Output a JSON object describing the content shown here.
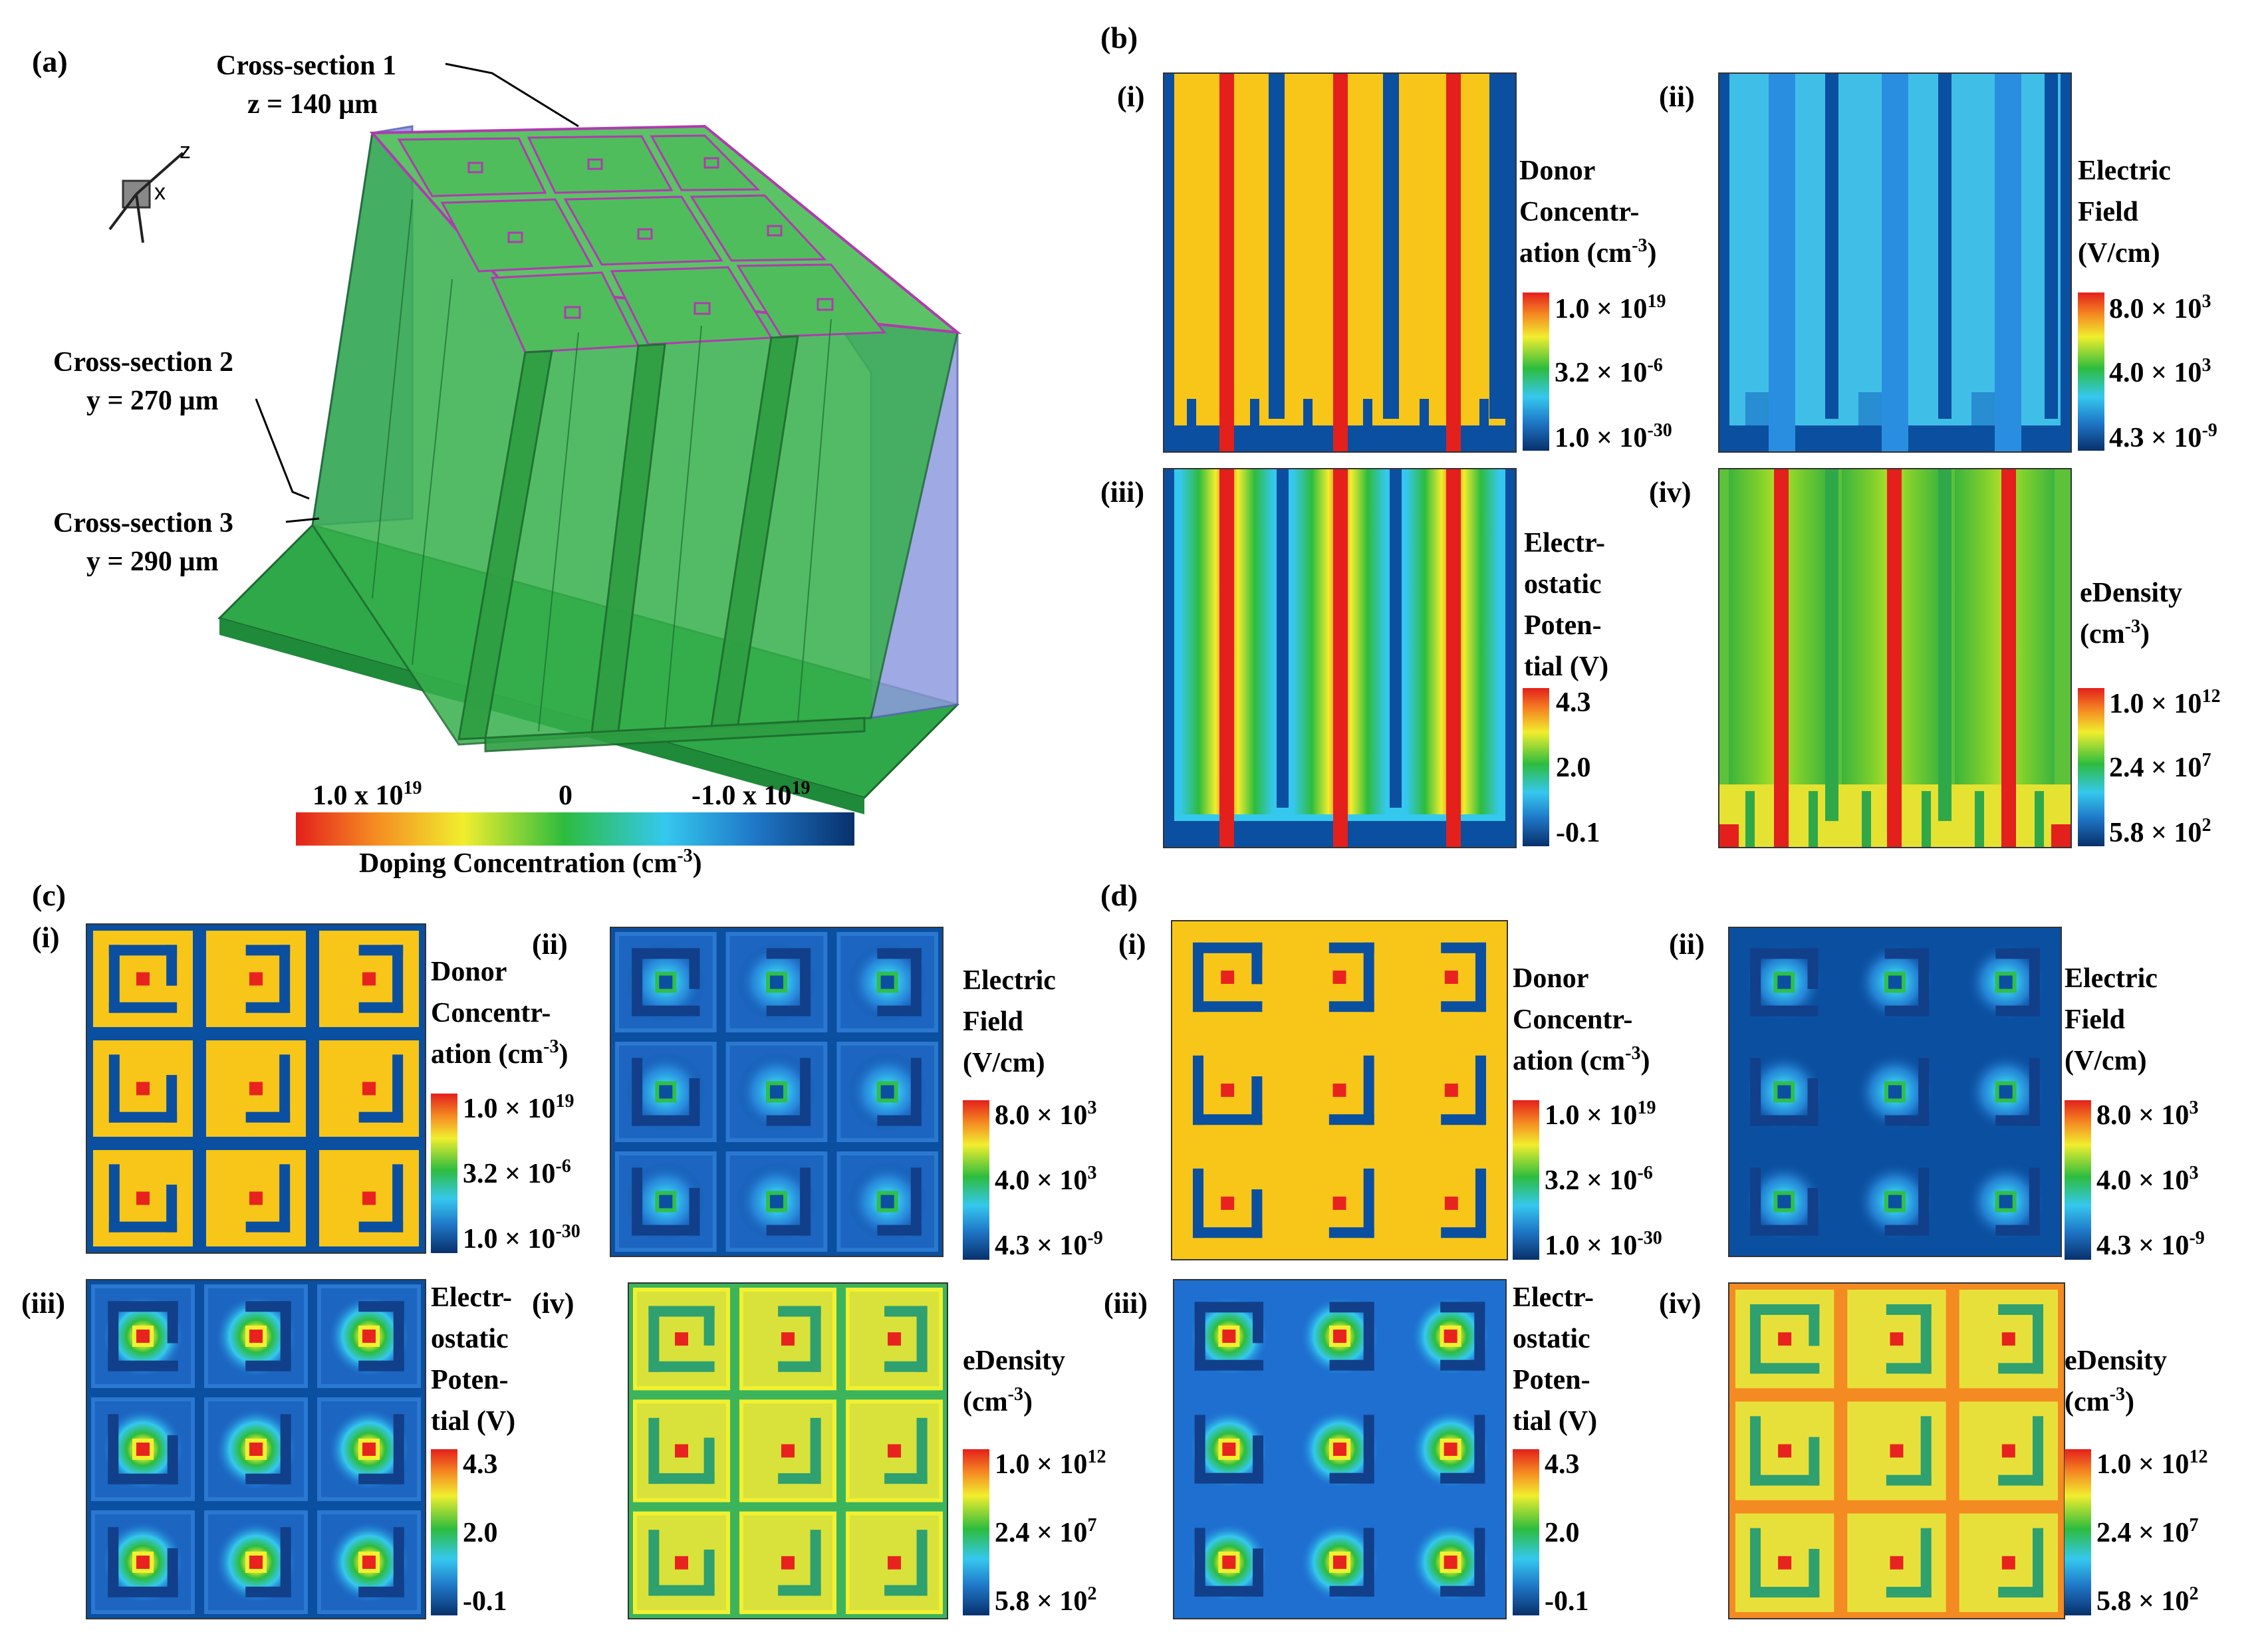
{
  "panels": {
    "a": {
      "label": "(a)"
    },
    "b": {
      "label": "(b)"
    },
    "c": {
      "label": "(c)"
    },
    "d": {
      "label": "(d)"
    }
  },
  "cube": {
    "axis_z": "z",
    "axis_x": "x",
    "annotations": [
      {
        "line1": "Cross-section 1",
        "line2": "z = 140 µm"
      },
      {
        "line1": "Cross-section 2",
        "line2": "y = 270 µm"
      },
      {
        "line1": "Cross-section 3",
        "line2": "y = 290 µm"
      }
    ],
    "colorbar": {
      "left_label": "1.0 x 10",
      "left_exp": "19",
      "mid_label": "0",
      "right_label": "-1.0 x 10",
      "right_exp": "19",
      "title": "Doping Concentration (cm",
      "title_exp": "-3",
      "title_end": ")"
    }
  },
  "subpanel_labels": [
    "(i)",
    "(ii)",
    "(iii)",
    "(iv)"
  ],
  "legends": {
    "donor": {
      "title_lines": [
        "Donor",
        "Concentr-",
        "ation (cm"
      ],
      "title_exp": "-3",
      "title_end": ")",
      "ticks": [
        {
          "m": "1.0 × 10",
          "e": "19"
        },
        {
          "m": "3.2 × 10",
          "e": "-6"
        },
        {
          "m": "1.0 × 10",
          "e": "-30"
        }
      ]
    },
    "efield": {
      "title_lines": [
        "Electric",
        "Field",
        "(V/cm)"
      ],
      "ticks": [
        {
          "m": "8.0 × 10",
          "e": "3"
        },
        {
          "m": "4.0 × 10",
          "e": "3"
        },
        {
          "m": "4.3 × 10",
          "e": "-9"
        }
      ]
    },
    "potential": {
      "title_lines": [
        "Electr-",
        "ostatic",
        "Poten-",
        "tial (V)"
      ],
      "ticks": [
        {
          "m": "4.3",
          "e": ""
        },
        {
          "m": "2.0",
          "e": ""
        },
        {
          "m": "-0.1",
          "e": ""
        }
      ]
    },
    "edensity": {
      "title_lines": [
        "eDensity",
        "(cm"
      ],
      "title_exp": "-3",
      "title_end": ")",
      "ticks": [
        {
          "m": "1.0 × 10",
          "e": "12"
        },
        {
          "m": "2.4 × 10",
          "e": "7"
        },
        {
          "m": "5.8 × 10",
          "e": "2"
        }
      ]
    }
  },
  "colors": {
    "navy": "#0b4fa0",
    "blue": "#1e6fd0",
    "cyan": "#38c3ee",
    "green": "#2fbf4a",
    "yellow": "#f2f030",
    "gold": "#f8c619",
    "orange": "#f48a22",
    "red": "#e8231f",
    "box_green": "#2fa84a",
    "box_purple": "#8f9be0"
  }
}
